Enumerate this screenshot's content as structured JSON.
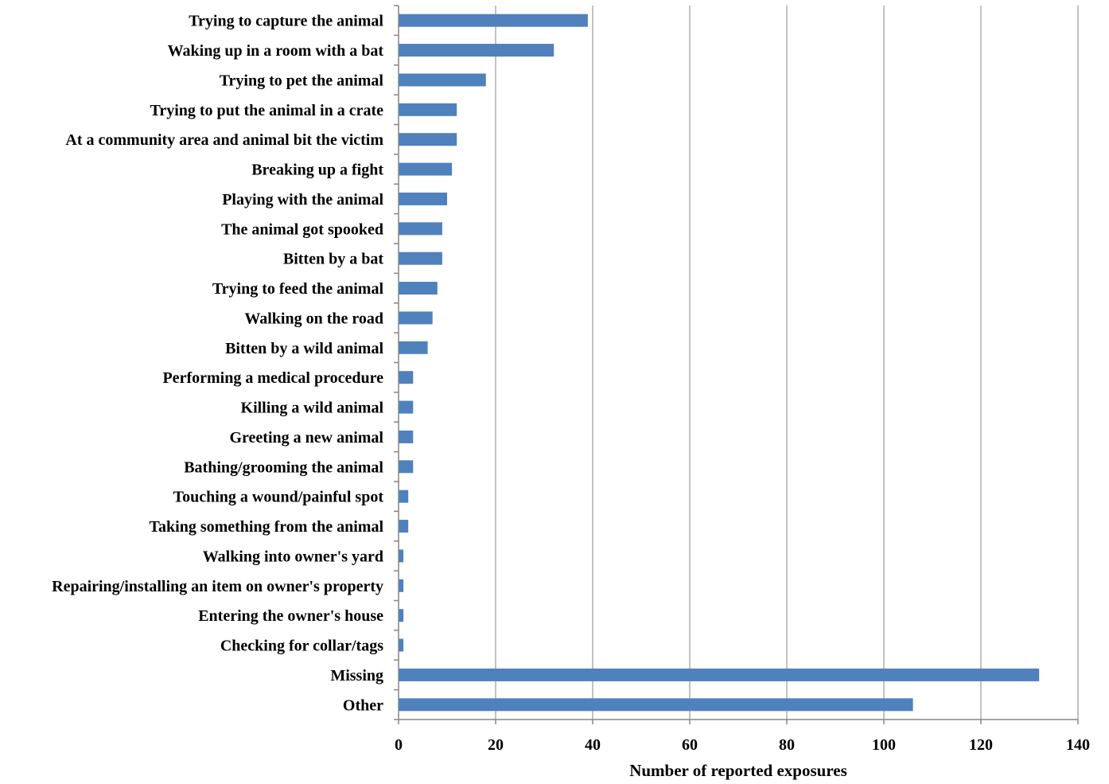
{
  "chart_data": {
    "type": "bar",
    "orientation": "horizontal",
    "title": "",
    "xlabel": "Number of reported exposures",
    "ylabel": "",
    "categories": [
      "Trying to capture the animal",
      "Waking up in a room with a bat",
      "Trying to pet the animal",
      "Trying to put the animal in a crate",
      "At a community area and animal bit the victim",
      "Breaking up a fight",
      "Playing with the animal",
      "The animal got spooked",
      "Bitten by a bat",
      "Trying to feed the animal",
      "Walking on the road",
      "Bitten by a wild animal",
      "Performing a medical procedure",
      "Killing a wild animal",
      "Greeting a new animal",
      "Bathing/grooming the animal",
      "Touching a wound/painful spot",
      "Taking something from the animal",
      "Walking into owner's yard",
      "Repairing/installing an item on owner's property",
      "Entering the owner's house",
      "Checking for collar/tags",
      "Missing",
      "Other"
    ],
    "values": [
      39,
      32,
      18,
      12,
      12,
      11,
      10,
      9,
      9,
      8,
      7,
      6,
      3,
      3,
      3,
      3,
      2,
      2,
      1,
      1,
      1,
      1,
      132,
      106
    ],
    "xlim": [
      0,
      140
    ],
    "xticks": [
      "0",
      "20",
      "40",
      "60",
      "80",
      "100",
      "120",
      "140"
    ],
    "grid": "vertical",
    "legend": "none",
    "bar_color": "#4f81bd",
    "grid_color": "#868686",
    "axis_color": "#868686"
  }
}
